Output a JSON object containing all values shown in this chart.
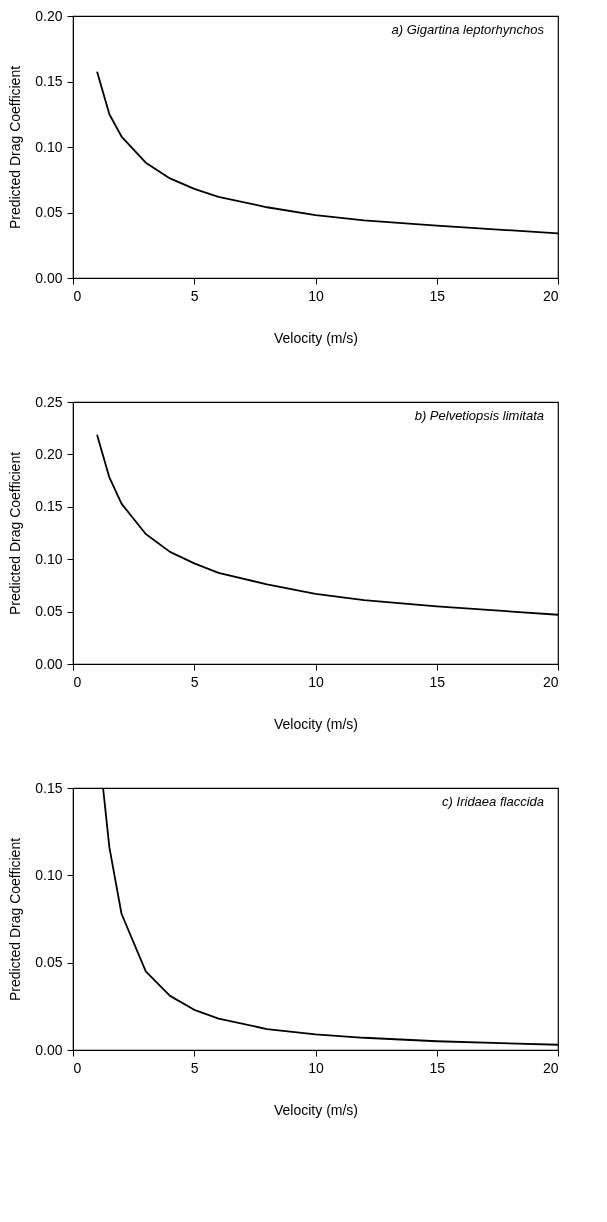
{
  "chart_data": [
    {
      "type": "line",
      "annotations": [
        "a) Gigartina leptorhynchos"
      ],
      "xlabel": "Velocity (m/s)",
      "ylabel": "Predicted Drag Coefficient",
      "x": [
        1,
        1.5,
        2,
        3,
        4,
        5,
        6,
        8,
        10,
        12,
        15,
        20
      ],
      "series": [
        {
          "color": "#000000",
          "values": [
            0.157,
            0.125,
            0.108,
            0.088,
            0.076,
            0.068,
            0.062,
            0.054,
            0.048,
            0.044,
            0.04,
            0.034
          ]
        }
      ],
      "xlim": [
        0,
        20
      ],
      "xticks": [
        0,
        5,
        10,
        15,
        20
      ],
      "ylim": [
        0,
        0.2
      ],
      "yticks": [
        {
          "value": 0,
          "label": "0.00"
        },
        {
          "value": 0.05,
          "label": "0.05"
        },
        {
          "value": 0.1,
          "label": "0.10"
        },
        {
          "value": 0.15,
          "label": "0.15"
        },
        {
          "value": 0.2,
          "label": "0.20"
        }
      ],
      "grid": false,
      "line_style": "solid"
    },
    {
      "type": "line",
      "annotations": [
        "b) Pelvetiopsis limitata"
      ],
      "xlabel": "Velocity (m/s)",
      "ylabel": "Predicted Drag Coefficient",
      "x": [
        1,
        1.5,
        2,
        3,
        4,
        5,
        6,
        8,
        10,
        12,
        15,
        20
      ],
      "series": [
        {
          "color": "#000000",
          "values": [
            0.218,
            0.178,
            0.153,
            0.124,
            0.107,
            0.096,
            0.087,
            0.076,
            0.067,
            0.061,
            0.055,
            0.047
          ]
        }
      ],
      "xlim": [
        0,
        20
      ],
      "xticks": [
        0,
        5,
        10,
        15,
        20
      ],
      "ylim": [
        0,
        0.25
      ],
      "yticks": [
        {
          "value": 0,
          "label": "0.00"
        },
        {
          "value": 0.05,
          "label": "0.05"
        },
        {
          "value": 0.1,
          "label": "0.10"
        },
        {
          "value": 0.15,
          "label": "0.15"
        },
        {
          "value": 0.2,
          "label": "0.20"
        },
        {
          "value": 0.25,
          "label": "0.25"
        }
      ],
      "grid": false,
      "line_style": "solid"
    },
    {
      "type": "line",
      "annotations": [
        "c) Iridaea flaccida"
      ],
      "xlabel": "Velocity (m/s)",
      "ylabel": "Predicted Drag Coefficient",
      "x": [
        1.24,
        1.5,
        2,
        3,
        4,
        5,
        6,
        8,
        10,
        12,
        15,
        20
      ],
      "series": [
        {
          "color": "#000000",
          "values": [
            0.15,
            0.116,
            0.078,
            0.045,
            0.031,
            0.023,
            0.018,
            0.012,
            0.009,
            0.007,
            0.005,
            0.003
          ]
        }
      ],
      "xlim": [
        0,
        20
      ],
      "xticks": [
        0,
        5,
        10,
        15,
        20
      ],
      "ylim": [
        0,
        0.15
      ],
      "yticks": [
        {
          "value": 0,
          "label": "0.00"
        },
        {
          "value": 0.05,
          "label": "0.05"
        },
        {
          "value": 0.1,
          "label": "0.10"
        },
        {
          "value": 0.15,
          "label": "0.15"
        }
      ],
      "grid": false,
      "line_style": "solid"
    }
  ]
}
